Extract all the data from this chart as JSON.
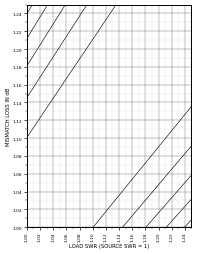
{
  "title": "",
  "xlabel": "LOAD SWR (SOURCE SWR = 1)",
  "ylabel": "MISMATCH LOSS IN dB",
  "xlim": [
    1.0,
    1.25
  ],
  "ylim": [
    1.0,
    1.25
  ],
  "xtick_step": 0.02,
  "ytick_step": 0.02,
  "background_color": "#ffffff",
  "contour_color": "#000000",
  "grid_major_color": "#000000",
  "grid_minor_color": "#888888",
  "fig_width": 1.97,
  "fig_height": 2.55,
  "dpi": 100,
  "contour_levels_step": 0.01,
  "contour_lw": 0.25,
  "xlabel_fontsize": 3.8,
  "ylabel_fontsize": 3.8,
  "tick_fontsize": 3.2
}
